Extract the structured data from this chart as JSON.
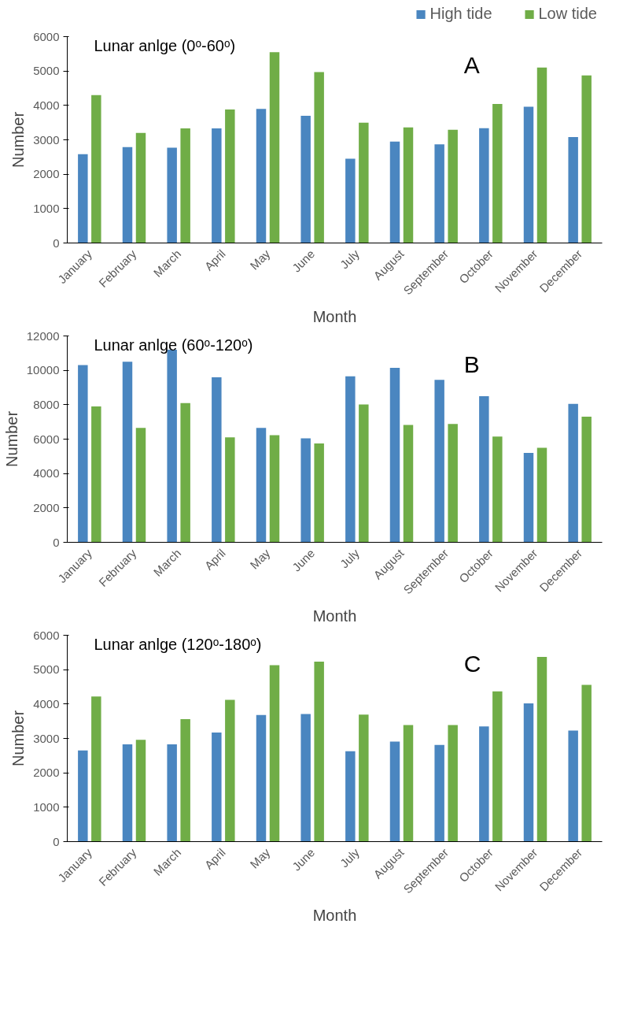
{
  "chart_data": [
    {
      "type": "bar",
      "title": "Lunar anlge (0ᵒ-60ᵒ)",
      "annotations": [
        "A"
      ],
      "xlabel": "Month",
      "ylabel": "Number",
      "legend": "top",
      "grid": false,
      "categories": [
        "January",
        "February",
        "March",
        "April",
        "May",
        "June",
        "July",
        "August",
        "September",
        "October",
        "November",
        "December"
      ],
      "ylim": [
        0,
        6000
      ],
      "yticks": [
        0,
        1000,
        2000,
        3000,
        4000,
        5000,
        6000
      ],
      "series": [
        {
          "name": "High tide",
          "color": "#4a86c0",
          "values": [
            2580,
            2790,
            2770,
            3330,
            3900,
            3700,
            2450,
            2950,
            2870,
            3340,
            3960,
            3080
          ]
        },
        {
          "name": "Low tide",
          "color": "#70ad47",
          "values": [
            4300,
            3200,
            3330,
            3880,
            5550,
            4970,
            3500,
            3360,
            3290,
            4040,
            5100,
            4870
          ]
        }
      ]
    },
    {
      "type": "bar",
      "title": "Lunar anlge (60ᵒ-120ᵒ)",
      "annotations": [
        "B"
      ],
      "xlabel": "Month",
      "ylabel": "Number",
      "legend": false,
      "grid": false,
      "categories": [
        "January",
        "February",
        "March",
        "April",
        "May",
        "June",
        "July",
        "August",
        "September",
        "October",
        "November",
        "December"
      ],
      "ylim": [
        0,
        12000
      ],
      "yticks": [
        0,
        2000,
        4000,
        6000,
        8000,
        10000,
        12000
      ],
      "series": [
        {
          "color": "#4a86c0",
          "values": [
            10300,
            10500,
            11200,
            9600,
            6650,
            6050,
            9650,
            10150,
            9450,
            8500,
            5200,
            8050
          ]
        },
        {
          "color": "#70ad47",
          "values": [
            7900,
            6650,
            8100,
            6100,
            6230,
            5750,
            8020,
            6820,
            6880,
            6150,
            5500,
            7300
          ]
        }
      ]
    },
    {
      "type": "bar",
      "title": "Lunar anlge (120ᵒ-180ᵒ)",
      "annotations": [
        "C"
      ],
      "xlabel": "Month",
      "ylabel": "Number",
      "legend": false,
      "grid": false,
      "categories": [
        "January",
        "February",
        "March",
        "April",
        "May",
        "June",
        "July",
        "August",
        "September",
        "October",
        "November",
        "December"
      ],
      "ylim": [
        0,
        6000
      ],
      "yticks": [
        0,
        1000,
        2000,
        3000,
        4000,
        5000,
        6000
      ],
      "series": [
        {
          "color": "#4a86c0",
          "values": [
            2650,
            2830,
            2830,
            3170,
            3680,
            3710,
            2630,
            2910,
            2810,
            3350,
            4020,
            3230
          ]
        },
        {
          "color": "#70ad47",
          "values": [
            4220,
            2960,
            3560,
            4120,
            5130,
            5230,
            3690,
            3390,
            3390,
            4370,
            5370,
            4560
          ]
        }
      ]
    }
  ]
}
